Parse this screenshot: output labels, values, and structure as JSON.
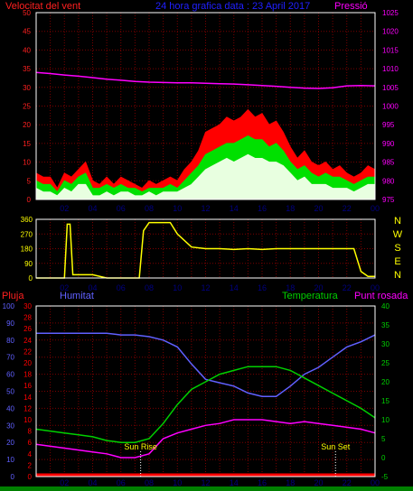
{
  "colors": {
    "background": "#000000",
    "grid": "#7a0000",
    "frame": "#ffffff",
    "wind_axis": "#ff2020",
    "wind_gust": "#ff0000",
    "wind_avg": "#00e000",
    "wind_min": "#e8ffe0",
    "pressure": "#ff00ff",
    "direction": "#ffff00",
    "humidity": "#6060ff",
    "temperature": "#00d000",
    "dewpoint": "#ff00ff",
    "rain": "#ff0000",
    "sun": "#ffff00",
    "hour_labels": "#000080",
    "footer_bg": "#008000"
  },
  "header": {
    "wind_title": "Velocitat del vent",
    "date_title": "24 hora grafica data : 23 April 2017",
    "pressure_title": "Pressió"
  },
  "hours": [
    "02",
    "04",
    "06",
    "08",
    "10",
    "12",
    "14",
    "16",
    "18",
    "20",
    "22",
    "00"
  ],
  "compass": [
    "N",
    "W",
    "S",
    "E",
    "N"
  ],
  "panel3_titles": {
    "rain": "Pluja",
    "humidity": "Humitat",
    "temperature": "Temperatura",
    "dewpoint": "Punt rosada"
  },
  "sun": {
    "rise_label": "Sun Rise",
    "set_label": "Sun Set",
    "rise_hour": 7.4,
    "set_hour": 21.2
  },
  "chart_data": [
    {
      "type": "line",
      "series": [
        {
          "x": [
            0.0,
            0.5,
            1.0,
            1.5,
            2.0,
            2.5,
            3.0,
            3.5,
            4.0,
            4.5,
            5.0,
            5.5,
            6.0,
            6.5,
            7.0,
            7.5,
            8.0,
            8.5,
            9.0,
            9.5,
            10.0,
            10.5,
            11.0,
            11.5,
            12.0,
            12.5,
            13.0,
            13.5,
            14.0,
            14.5,
            15.0,
            15.5,
            16.0,
            16.5,
            17.0,
            17.5,
            18.0,
            18.5,
            19.0,
            19.5,
            20.0,
            20.5,
            21.0,
            21.5,
            22.0,
            22.5,
            23.0,
            23.5,
            24.0
          ],
          "values": [
            7,
            6,
            6,
            3,
            7,
            6,
            8,
            10,
            5,
            4,
            6,
            4,
            6,
            5,
            4,
            3,
            5,
            4,
            5,
            6,
            5,
            8,
            10,
            13,
            18,
            19,
            20,
            22,
            21,
            22,
            24,
            22,
            23,
            20,
            21,
            18,
            14,
            11,
            13,
            10,
            9,
            10,
            8,
            9,
            7,
            6,
            7,
            9,
            8
          ]
        },
        {
          "x": [
            0.0,
            0.5,
            1.0,
            1.5,
            2.0,
            2.5,
            3.0,
            3.5,
            4.0,
            4.5,
            5.0,
            5.5,
            6.0,
            6.5,
            7.0,
            7.5,
            8.0,
            8.5,
            9.0,
            9.5,
            10.0,
            10.5,
            11.0,
            11.5,
            12.0,
            12.5,
            13.0,
            13.5,
            14.0,
            14.5,
            15.0,
            15.5,
            16.0,
            16.5,
            17.0,
            17.5,
            18.0,
            18.5,
            19.0,
            19.5,
            20.0,
            20.5,
            21.0,
            21.5,
            22.0,
            22.5,
            23.0,
            23.5,
            24.0
          ],
          "values": [
            5,
            4,
            4,
            2,
            5,
            4,
            6,
            7,
            3,
            3,
            4,
            3,
            4,
            3,
            3,
            2,
            3,
            3,
            3,
            4,
            3,
            5,
            7,
            9,
            12,
            13,
            14,
            15,
            15,
            16,
            17,
            16,
            16,
            14,
            15,
            13,
            10,
            8,
            9,
            7,
            6,
            7,
            6,
            6,
            5,
            4,
            5,
            6,
            6
          ]
        },
        {
          "x": [
            0.0,
            0.5,
            1.0,
            1.5,
            2.0,
            2.5,
            3.0,
            3.5,
            4.0,
            4.5,
            5.0,
            5.5,
            6.0,
            6.5,
            7.0,
            7.5,
            8.0,
            8.5,
            9.0,
            9.5,
            10.0,
            10.5,
            11.0,
            11.5,
            12.0,
            12.5,
            13.0,
            13.5,
            14.0,
            14.5,
            15.0,
            15.5,
            16.0,
            16.5,
            17.0,
            17.5,
            18.0,
            18.5,
            19.0,
            19.5,
            20.0,
            20.5,
            21.0,
            21.5,
            22.0,
            22.5,
            23.0,
            23.5,
            24.0
          ],
          "values": [
            3,
            2,
            2,
            1,
            3,
            2,
            4,
            4,
            1,
            1,
            2,
            1,
            2,
            2,
            1,
            1,
            2,
            1,
            2,
            2,
            2,
            3,
            4,
            6,
            8,
            9,
            10,
            11,
            10,
            11,
            12,
            11,
            11,
            10,
            10,
            9,
            7,
            5,
            6,
            4,
            4,
            4,
            3,
            3,
            3,
            2,
            3,
            4,
            4
          ]
        },
        {
          "x": [
            0,
            1,
            2,
            3,
            4,
            5,
            6,
            7,
            8,
            9,
            10,
            11,
            12,
            13,
            14,
            15,
            16,
            17,
            18,
            19,
            20,
            21,
            22,
            23,
            24
          ],
          "values": [
            1009,
            1008.7,
            1008.3,
            1008,
            1007.6,
            1007.2,
            1006.9,
            1006.6,
            1006.4,
            1006.3,
            1006.2,
            1006.2,
            1006.1,
            1006,
            1005.9,
            1005.7,
            1005.5,
            1005.3,
            1005,
            1004.8,
            1004.7,
            1004.9,
            1005.4,
            1005.5,
            1005.4
          ]
        }
      ],
      "xlim": [
        0,
        24
      ],
      "ylim": [
        0,
        50
      ],
      "yticks": [
        0,
        5,
        10,
        15,
        20,
        25,
        30,
        35,
        40,
        45,
        50
      ],
      "y2lim": [
        975,
        1025
      ],
      "y2ticks": [
        975,
        980,
        985,
        990,
        995,
        1000,
        1005,
        1010,
        1015,
        1020,
        1025
      ]
    },
    {
      "type": "line",
      "series": [
        {
          "x": [
            0,
            2.0,
            2.2,
            2.4,
            2.6,
            2.8,
            3.0,
            4.0,
            5.0,
            6.0,
            7.0,
            7.3,
            7.6,
            8.0,
            9.0,
            9.5,
            10,
            11,
            12,
            13,
            14,
            15,
            16,
            17,
            18,
            19,
            20,
            21,
            22,
            22.5,
            23,
            23.5,
            24
          ],
          "values": [
            0,
            0,
            330,
            330,
            20,
            20,
            20,
            20,
            0,
            0,
            0,
            0,
            290,
            340,
            340,
            340,
            270,
            190,
            180,
            180,
            175,
            180,
            175,
            180,
            180,
            180,
            180,
            180,
            180,
            180,
            40,
            10,
            10
          ]
        }
      ],
      "xlim": [
        0,
        24
      ],
      "ylim": [
        0,
        360
      ],
      "yticks": [
        0,
        90,
        180,
        270,
        360
      ]
    },
    {
      "type": "line",
      "series": [
        {
          "x": [
            0,
            1,
            2,
            3,
            4,
            5,
            6,
            7,
            8,
            9,
            10,
            11,
            12,
            13,
            14,
            15,
            16,
            17,
            18,
            19,
            20,
            21,
            22,
            23,
            24
          ],
          "values": [
            84,
            84,
            84,
            84,
            84,
            84,
            83,
            83,
            82,
            80,
            76,
            66,
            57,
            55,
            53,
            49,
            47,
            47,
            53,
            60,
            64,
            70,
            76,
            79,
            83
          ]
        },
        {
          "x": [
            0,
            1,
            2,
            3,
            4,
            5,
            6,
            7,
            8,
            9,
            10,
            11,
            12,
            13,
            14,
            15,
            16,
            17,
            18,
            19,
            20,
            21,
            22,
            23,
            24
          ],
          "values": [
            7.5,
            7,
            6.5,
            6,
            5.5,
            4.5,
            4,
            4,
            5,
            9,
            14,
            18,
            20,
            22,
            23,
            24,
            24,
            24,
            23,
            21,
            19,
            17,
            15,
            13,
            10.5
          ]
        },
        {
          "x": [
            0,
            1,
            2,
            3,
            4,
            5,
            6,
            7,
            8,
            9,
            10,
            11,
            12,
            13,
            14,
            15,
            16,
            17,
            18,
            19,
            20,
            21,
            22,
            23,
            24
          ],
          "values": [
            3.5,
            3,
            2.5,
            2,
            1.5,
            1,
            0,
            0,
            1,
            5,
            6.5,
            7.5,
            8.5,
            9,
            10,
            10,
            10,
            9.5,
            9,
            9.5,
            9,
            8.5,
            8,
            7.5,
            6.5
          ]
        },
        {
          "x": [
            0,
            24
          ],
          "values": [
            0,
            0
          ]
        }
      ],
      "xlim": [
        0,
        24
      ],
      "ylim_humidity": [
        0,
        100
      ],
      "yticks_humidity": [
        0,
        10,
        20,
        30,
        40,
        50,
        60,
        70,
        80,
        90,
        100
      ],
      "ylim_rain": [
        0,
        30
      ],
      "yticks_rain": [
        0,
        2,
        4,
        6,
        8,
        10,
        12,
        14,
        16,
        18,
        20,
        22,
        24,
        26,
        28,
        30
      ],
      "ylim_temperature": [
        -5,
        40
      ],
      "yticks_temperature": [
        -5,
        0,
        5,
        10,
        15,
        20,
        25,
        30,
        35,
        40
      ]
    }
  ]
}
